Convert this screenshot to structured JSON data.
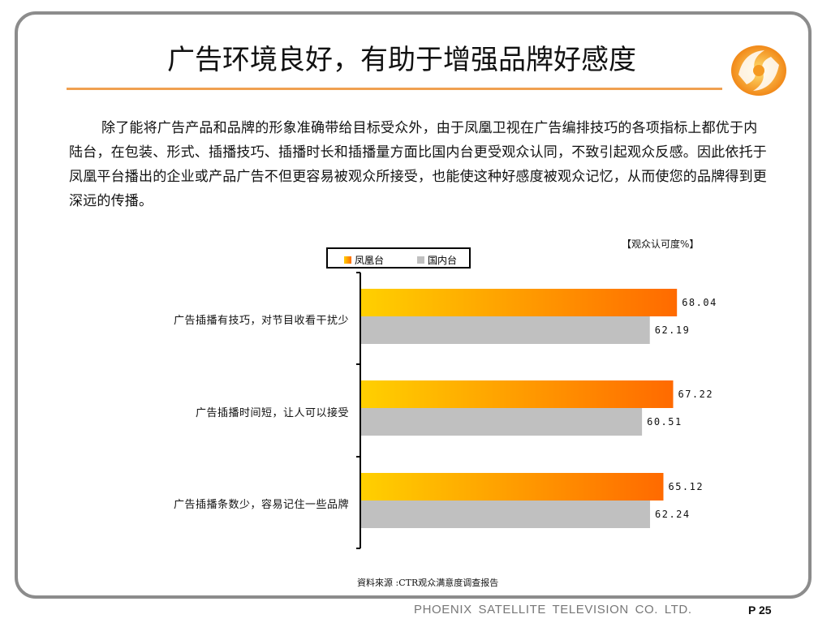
{
  "slide": {
    "title": "广告环境良好，有助于增强品牌好感度",
    "paragraph": "除了能将广告产品和品牌的形象准确带给目标受众外，由于凤凰卫视在广告编排技巧的各项指标上都优于内陆台，在包装、形式、插播技巧、插播时长和插播量方面比国内台更受观众认同，不致引起观众反感。因此依托于凤凰平台播出的企业或产品广告不但更容易被观众所接受，也能使这种好感度被观众记忆，从而使您的品牌得到更深远的传播。",
    "source": "資料來源 :CTR观众满意度调查报告",
    "footer_company": "PHOENIX SATELLITE TELEVISION CO. LTD.",
    "footer_page": "P 25",
    "logo_icon": "phoenix-logo-icon"
  },
  "colors": {
    "phoenix_bar_start": "#ffd000",
    "phoenix_bar_end": "#ff6a00",
    "domestic_bar": "#c0c0c0",
    "title_rule": "#f0a050",
    "frame": "#8c8c8c"
  },
  "chart_data": {
    "type": "bar",
    "orientation": "horizontal",
    "unit_note": "【观众认可度%】",
    "categories": [
      "广告插播有技巧，对节目收看干扰少",
      "广告插播时间短，让人可以接受",
      "广告插播条数少，容易记住一些品牌"
    ],
    "series": [
      {
        "name": "凤凰台",
        "values": [
          68.04,
          67.22,
          65.12
        ],
        "labels": [
          "68.04",
          "67.22",
          "65.12"
        ]
      },
      {
        "name": "国内台",
        "values": [
          62.19,
          60.51,
          62.24
        ],
        "labels": [
          "62.19",
          "60.51",
          "62.24"
        ]
      }
    ],
    "legend_position": "top"
  }
}
